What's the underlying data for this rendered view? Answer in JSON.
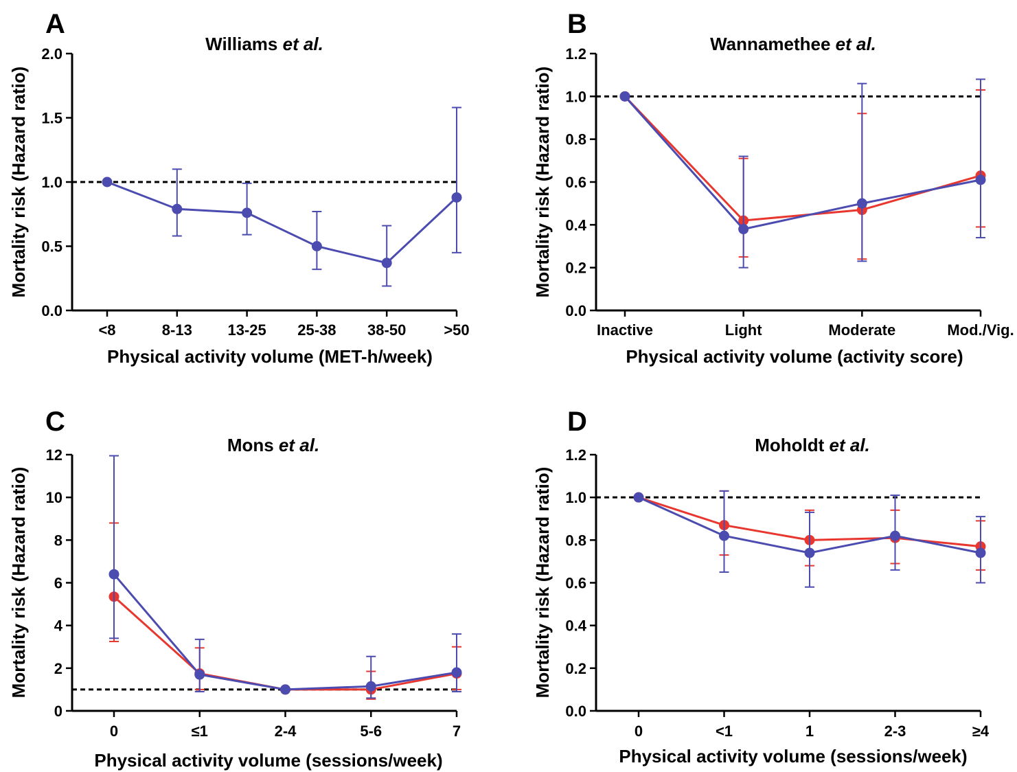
{
  "colors": {
    "red": "#e8372f",
    "blue": "#4b4bb0"
  },
  "chart_data": [
    {
      "type": "line",
      "panel_label": "A",
      "title": "Williams",
      "title_suffix": "et al.",
      "xlabel": "Physical activity volume (MET-h/week)",
      "ylabel": "Mortality risk (Hazard ratio)",
      "categories": [
        "<8",
        "8-13",
        "13-25",
        "25-38",
        "38-50",
        ">50"
      ],
      "ylim": [
        0,
        2.0
      ],
      "yticks": [
        0.0,
        0.5,
        1.0,
        1.5,
        2.0
      ],
      "ytick_labels": [
        "0.0",
        "0.5",
        "1.0",
        "1.5",
        "2.0"
      ],
      "reference_line": 1.0,
      "series": [
        {
          "color": "#4b4bb0",
          "values": [
            1.0,
            0.79,
            0.76,
            0.5,
            0.37,
            0.88
          ],
          "lower": [
            null,
            0.58,
            0.59,
            0.32,
            0.19,
            0.45
          ],
          "upper": [
            null,
            1.1,
            0.99,
            0.77,
            0.66,
            1.58
          ]
        }
      ]
    },
    {
      "type": "line",
      "panel_label": "B",
      "title": "Wannamethee",
      "title_suffix": "et al.",
      "xlabel": "Physical activity volume (activity score)",
      "ylabel": "Mortality risk (Hazard ratio)",
      "categories": [
        "Inactive",
        "Light",
        "Moderate",
        "Mod./Vig."
      ],
      "ylim": [
        0,
        1.2
      ],
      "yticks": [
        0.0,
        0.2,
        0.4,
        0.6,
        0.8,
        1.0,
        1.2
      ],
      "ytick_labels": [
        "0.0",
        "0.2",
        "0.4",
        "0.6",
        "0.8",
        "1.0",
        "1.2"
      ],
      "reference_line": 1.0,
      "series": [
        {
          "color": "#e8372f",
          "values": [
            1.0,
            0.42,
            0.47,
            0.63
          ],
          "lower": [
            null,
            0.25,
            0.24,
            0.39
          ],
          "upper": [
            null,
            0.71,
            0.92,
            1.03
          ]
        },
        {
          "color": "#4b4bb0",
          "values": [
            1.0,
            0.38,
            0.5,
            0.61
          ],
          "lower": [
            null,
            0.2,
            0.23,
            0.34
          ],
          "upper": [
            null,
            0.72,
            1.06,
            1.08
          ]
        }
      ]
    },
    {
      "type": "line",
      "panel_label": "C",
      "title": "Mons",
      "title_suffix": "et al.",
      "xlabel": "Physical activity volume (sessions/week)",
      "ylabel": "Mortality risk (Hazard ratio)",
      "categories": [
        "0",
        "≤1",
        "2-4",
        "5-6",
        "7"
      ],
      "ylim": [
        0,
        12
      ],
      "yticks": [
        0,
        2,
        4,
        6,
        8,
        10,
        12
      ],
      "ytick_labels": [
        "0",
        "2",
        "4",
        "6",
        "8",
        "10",
        "12"
      ],
      "reference_line": 1.0,
      "series": [
        {
          "color": "#e8372f",
          "values": [
            5.35,
            1.75,
            1.0,
            1.0,
            1.75
          ],
          "lower": [
            3.25,
            1.0,
            null,
            0.55,
            1.0
          ],
          "upper": [
            8.8,
            2.95,
            null,
            1.85,
            3.0
          ]
        },
        {
          "color": "#4b4bb0",
          "values": [
            6.4,
            1.7,
            1.0,
            1.15,
            1.8
          ],
          "lower": [
            3.4,
            0.9,
            null,
            0.6,
            0.9
          ],
          "upper": [
            11.95,
            3.35,
            null,
            2.55,
            3.6
          ]
        }
      ]
    },
    {
      "type": "line",
      "panel_label": "D",
      "title": "Moholdt",
      "title_suffix": "et al.",
      "xlabel": "Physical activity volume (sessions/week)",
      "ylabel": "Mortality risk (Hazard ratio)",
      "categories": [
        "0",
        "<1",
        "1",
        "2-3",
        "≥4"
      ],
      "ylim": [
        0,
        1.2
      ],
      "yticks": [
        0.0,
        0.2,
        0.4,
        0.6,
        0.8,
        1.0,
        1.2
      ],
      "ytick_labels": [
        "0.0",
        "0.2",
        "0.4",
        "0.6",
        "0.8",
        "1.0",
        "1.2"
      ],
      "reference_line": 1.0,
      "series": [
        {
          "color": "#e8372f",
          "values": [
            1.0,
            0.87,
            0.8,
            0.81,
            0.77
          ],
          "lower": [
            null,
            0.73,
            0.68,
            0.69,
            0.66
          ],
          "upper": [
            null,
            1.03,
            0.94,
            0.94,
            0.89
          ]
        },
        {
          "color": "#4b4bb0",
          "values": [
            1.0,
            0.82,
            0.74,
            0.82,
            0.74
          ],
          "lower": [
            null,
            0.65,
            0.58,
            0.66,
            0.6
          ],
          "upper": [
            null,
            1.03,
            0.93,
            1.01,
            0.91
          ]
        }
      ]
    }
  ]
}
